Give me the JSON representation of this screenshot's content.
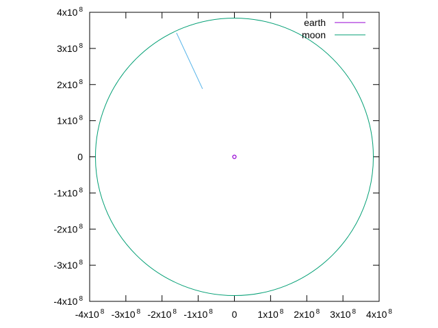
{
  "chart_data": {
    "type": "line",
    "title": "",
    "xlabel": "",
    "ylabel": "",
    "xlim": [
      -400000000,
      400000000
    ],
    "ylim": [
      -400000000,
      400000000
    ],
    "grid": false,
    "legend_position": "top-right",
    "x_ticks": [
      {
        "value": -400000000,
        "mantissa": "-4x10",
        "exp": "8"
      },
      {
        "value": -300000000,
        "mantissa": "-3x10",
        "exp": "8"
      },
      {
        "value": -200000000,
        "mantissa": "-2x10",
        "exp": "8"
      },
      {
        "value": -100000000,
        "mantissa": "-1x10",
        "exp": "8"
      },
      {
        "value": 0,
        "mantissa": "0",
        "exp": ""
      },
      {
        "value": 100000000,
        "mantissa": "1x10",
        "exp": "8"
      },
      {
        "value": 200000000,
        "mantissa": "2x10",
        "exp": "8"
      },
      {
        "value": 300000000,
        "mantissa": "3x10",
        "exp": "8"
      },
      {
        "value": 400000000,
        "mantissa": "4x10",
        "exp": "8"
      }
    ],
    "y_ticks": [
      {
        "value": 400000000,
        "mantissa": "4x10",
        "exp": "8"
      },
      {
        "value": 300000000,
        "mantissa": "3x10",
        "exp": "8"
      },
      {
        "value": 200000000,
        "mantissa": "2x10",
        "exp": "8"
      },
      {
        "value": 100000000,
        "mantissa": "1x10",
        "exp": "8"
      },
      {
        "value": 0,
        "mantissa": "0",
        "exp": ""
      },
      {
        "value": -100000000,
        "mantissa": "-1x10",
        "exp": "8"
      },
      {
        "value": -200000000,
        "mantissa": "-2x10",
        "exp": "8"
      },
      {
        "value": -300000000,
        "mantissa": "-3x10",
        "exp": "8"
      },
      {
        "value": -400000000,
        "mantissa": "-4x10",
        "exp": "8"
      }
    ],
    "series": [
      {
        "name": "earth",
        "color": "#9400d3",
        "kind": "point",
        "x": [
          0
        ],
        "y": [
          0
        ]
      },
      {
        "name": "moon",
        "color": "#009e73",
        "kind": "circle-orbit",
        "center": [
          0,
          0
        ],
        "radius": 384000000
      }
    ],
    "annotations": [
      {
        "kind": "segment",
        "color": "#56b4e9",
        "x": [
          -160000000,
          -88000000
        ],
        "y": [
          343000000,
          188000000
        ]
      }
    ]
  }
}
